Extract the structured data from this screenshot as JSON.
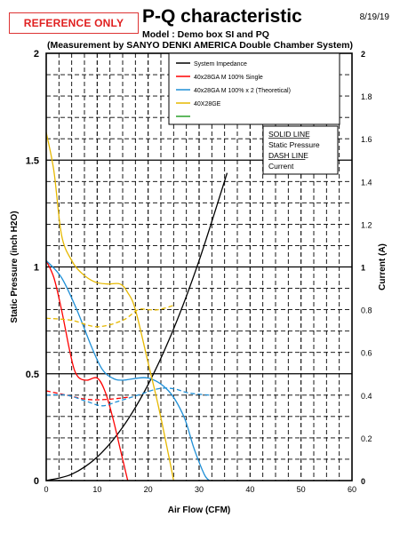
{
  "header": {
    "badge": "REFERENCE ONLY",
    "date": "8/19/19",
    "title": "P-Q characteristic",
    "model": "Model : Demo box SI and PQ",
    "measurement": "(Measurement by SANYO DENKI AMERICA Double Chamber System)"
  },
  "legend": {
    "items": [
      {
        "label": "System Impedance",
        "color": "#000000"
      },
      {
        "label": "40x28GA M 100% Single",
        "color": "#ff0000"
      },
      {
        "label": "40x28GA M 100% x 2 (Theoretical)",
        "color": "#1f8fd6"
      },
      {
        "label": "40X28GE",
        "color": "#e6b800"
      },
      {
        "label": "",
        "color": "#2aa02a"
      }
    ]
  },
  "style_note": {
    "line1": "SOLID LINE",
    "line2": "Static Pressure",
    "line3": "DASH LINE",
    "line4": "Current"
  },
  "chart_data": {
    "type": "line",
    "xlabel": "Air Flow (CFM)",
    "ylabel_left": "Static Pressure (inch H2O)",
    "ylabel_right": "Current (A)",
    "xlim": [
      0,
      60
    ],
    "ylim_left": [
      0,
      2
    ],
    "ylim_right": [
      0,
      2
    ],
    "x_ticks": [
      0,
      10,
      20,
      30,
      40,
      50,
      60
    ],
    "y_left_ticks": [
      0,
      0.5,
      1,
      1.5,
      2
    ],
    "y_left_tick_labels": [
      "0",
      "0.5",
      "1",
      "1.5",
      "2"
    ],
    "y_right_ticks": [
      0,
      0.2,
      0.4,
      0.6,
      0.8,
      1,
      1.2,
      1.4,
      1.6,
      1.8,
      2
    ],
    "grid": true,
    "series": [
      {
        "name": "System Impedance",
        "axis": "left",
        "style": "solid",
        "color": "#000000",
        "x": [
          0,
          5,
          10,
          15,
          20,
          25,
          30,
          35.5
        ],
        "y": [
          0,
          0.03,
          0.11,
          0.25,
          0.45,
          0.71,
          1.03,
          1.44
        ]
      },
      {
        "name": "40x28GA M 100% Single",
        "axis": "left",
        "style": "solid",
        "color": "#ff0000",
        "x": [
          0,
          1.5,
          3,
          4.5,
          5.5,
          6.5,
          8,
          10,
          11.5,
          13,
          14.5,
          16
        ],
        "y": [
          1.03,
          0.95,
          0.8,
          0.62,
          0.52,
          0.48,
          0.47,
          0.48,
          0.42,
          0.3,
          0.15,
          0
        ]
      },
      {
        "name": "40x28GA M 100% x 2 (Theoretical)",
        "axis": "left",
        "style": "solid",
        "color": "#1f8fd6",
        "x": [
          0,
          3,
          6,
          9,
          11,
          13,
          15,
          20,
          24,
          27,
          29,
          31,
          32
        ],
        "y": [
          1.03,
          0.95,
          0.8,
          0.62,
          0.52,
          0.48,
          0.47,
          0.48,
          0.42,
          0.3,
          0.15,
          0.03,
          0
        ]
      },
      {
        "name": "40X28GE",
        "axis": "left",
        "style": "solid",
        "color": "#e6b800",
        "x": [
          0,
          1.5,
          3,
          5,
          7,
          9.5,
          12,
          14.5,
          16,
          17.5,
          20,
          22,
          24,
          25
        ],
        "y": [
          1.63,
          1.45,
          1.15,
          1.03,
          0.97,
          0.93,
          0.92,
          0.92,
          0.88,
          0.8,
          0.55,
          0.35,
          0.12,
          0
        ]
      },
      {
        "name": "40X28GE",
        "axis": "right",
        "style": "dash",
        "color": "#e6b800",
        "x": [
          0,
          5,
          10,
          15,
          18,
          20,
          22,
          25
        ],
        "y": [
          0.76,
          0.75,
          0.72,
          0.75,
          0.8,
          0.8,
          0.8,
          0.82
        ]
      },
      {
        "name": "40x28GA M 100% Single",
        "axis": "right",
        "style": "dash",
        "color": "#ff0000",
        "x": [
          0,
          4,
          8,
          12,
          16
        ],
        "y": [
          0.42,
          0.4,
          0.38,
          0.38,
          0.39
        ]
      },
      {
        "name": "40x28GA M 100% x 2 (Theoretical)",
        "axis": "right",
        "style": "dash",
        "color": "#1f8fd6",
        "x": [
          0,
          4,
          8,
          11,
          14,
          18,
          22,
          25,
          28,
          32
        ],
        "y": [
          0.4,
          0.4,
          0.37,
          0.35,
          0.37,
          0.4,
          0.43,
          0.43,
          0.41,
          0.4
        ]
      }
    ]
  }
}
